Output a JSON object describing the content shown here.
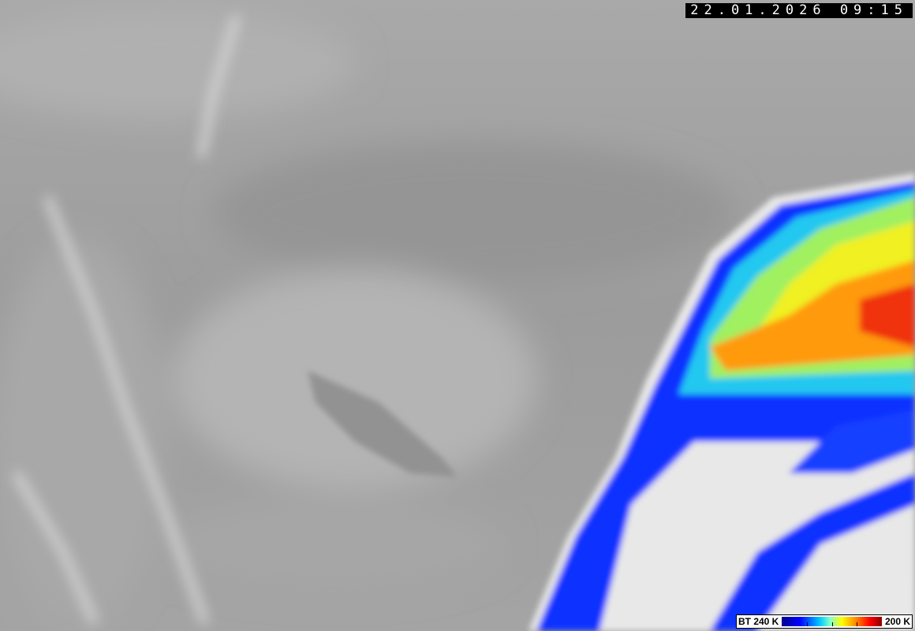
{
  "timestamp": "22.01.2026 09:15",
  "legend": {
    "label_left": "BT 240 K",
    "label_right": "200 K",
    "colors": [
      "#00008a",
      "#0000ff",
      "#00c8ff",
      "#7fffd0",
      "#ffff00",
      "#ff8000",
      "#ff0000",
      "#8a0000"
    ]
  }
}
